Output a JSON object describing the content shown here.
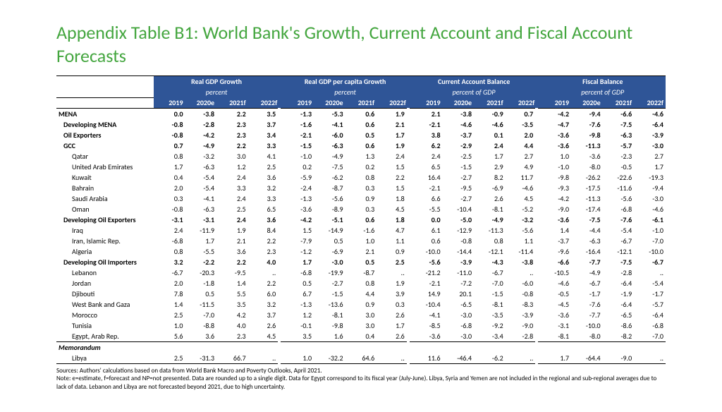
{
  "title": "Appendix Table B1: World Bank's Growth, Current Account and Fiscal Account Forecasts",
  "header": {
    "groups": [
      {
        "title": "Real GDP Growth",
        "sub": "percent"
      },
      {
        "title": "Real GDP per capita Growth",
        "sub": "percent"
      },
      {
        "title": "Current Account Balance",
        "sub": "percent of GDP"
      },
      {
        "title": "Fiscal Balance",
        "sub": "percent of GDP"
      }
    ],
    "years": [
      "2019",
      "2020e",
      "2021f",
      "2022f"
    ]
  },
  "rows": [
    {
      "label": "MENA",
      "cls": "bold",
      "v": [
        "0.0",
        "-3.8",
        "2.2",
        "3.5",
        "-1.3",
        "-5.3",
        "0.6",
        "1.9",
        "2.1",
        "-3.8",
        "-0.9",
        "0.7",
        "-4.2",
        "-9.4",
        "-6.6",
        "-4.6"
      ]
    },
    {
      "label": "Developing MENA",
      "cls": "bold indent1",
      "v": [
        "-0.8",
        "-2.8",
        "2.3",
        "3.7",
        "-1.6",
        "-4.1",
        "0.6",
        "2.1",
        "-2.1",
        "-4.6",
        "-4.6",
        "-3.5",
        "-4.7",
        "-7.6",
        "-7.5",
        "-6.4"
      ]
    },
    {
      "label": "Oil Exporters",
      "cls": "bold indent1",
      "v": [
        "-0.8",
        "-4.2",
        "2.3",
        "3.4",
        "-2.1",
        "-6.0",
        "0.5",
        "1.7",
        "3.8",
        "-3.7",
        "0.1",
        "2.0",
        "-3.6",
        "-9.8",
        "-6.3",
        "-3.9"
      ]
    },
    {
      "label": "GCC",
      "cls": "bold indent1",
      "v": [
        "0.7",
        "-4.9",
        "2.2",
        "3.3",
        "-1.5",
        "-6.3",
        "0.6",
        "1.9",
        "6.2",
        "-2.9",
        "2.4",
        "4.4",
        "-3.6",
        "-11.3",
        "-5.7",
        "-3.0"
      ]
    },
    {
      "label": "Qatar",
      "cls": "indent2",
      "v": [
        "0.8",
        "-3.2",
        "3.0",
        "4.1",
        "-1.0",
        "-4.9",
        "1.3",
        "2.4",
        "2.4",
        "-2.5",
        "1.7",
        "2.7",
        "1.0",
        "-3.6",
        "-2.3",
        "2.7"
      ]
    },
    {
      "label": "United Arab Emirates",
      "cls": "indent2",
      "v": [
        "1.7",
        "-6.3",
        "1.2",
        "2.5",
        "0.2",
        "-7.5",
        "0.2",
        "1.5",
        "6.5",
        "-1.5",
        "2.9",
        "4.9",
        "-1.0",
        "-8.0",
        "-0.5",
        "1.7"
      ]
    },
    {
      "label": "Kuwait",
      "cls": "indent2",
      "v": [
        "0.4",
        "-5.4",
        "2.4",
        "3.6",
        "-5.9",
        "-6.2",
        "0.8",
        "2.2",
        "16.4",
        "-2.7",
        "8.2",
        "11.7",
        "-9.8",
        "-26.2",
        "-22.6",
        "-19.3"
      ]
    },
    {
      "label": "Bahrain",
      "cls": "indent2",
      "v": [
        "2.0",
        "-5.4",
        "3.3",
        "3.2",
        "-2.4",
        "-8.7",
        "0.3",
        "1.5",
        "-2.1",
        "-9.5",
        "-6.9",
        "-4.6",
        "-9.3",
        "-17.5",
        "-11.6",
        "-9.4"
      ]
    },
    {
      "label": "Saudi Arabia",
      "cls": "indent2",
      "v": [
        "0.3",
        "-4.1",
        "2.4",
        "3.3",
        "-1.3",
        "-5.6",
        "0.9",
        "1.8",
        "6.6",
        "-2.7",
        "2.6",
        "4.5",
        "-4.2",
        "-11.3",
        "-5.6",
        "-3.0"
      ]
    },
    {
      "label": "Oman",
      "cls": "indent2",
      "v": [
        "-0.8",
        "-6.3",
        "2.5",
        "6.5",
        "-3.6",
        "-8.9",
        "0.3",
        "4.5",
        "-5.5",
        "-10.4",
        "-8.1",
        "-5.2",
        "-9.0",
        "-17.4",
        "-6.8",
        "-4.6"
      ]
    },
    {
      "label": "Developing Oil Exporters",
      "cls": "bold indent1",
      "v": [
        "-3.1",
        "-3.1",
        "2.4",
        "3.6",
        "-4.2",
        "-5.1",
        "0.6",
        "1.8",
        "0.0",
        "-5.0",
        "-4.9",
        "-3.2",
        "-3.6",
        "-7.5",
        "-7.6",
        "-6.1"
      ]
    },
    {
      "label": "Iraq",
      "cls": "indent2",
      "v": [
        "2.4",
        "-11.9",
        "1.9",
        "8.4",
        "1.5",
        "-14.9",
        "-1.6",
        "4.7",
        "6.1",
        "-12.9",
        "-11.3",
        "-5.6",
        "1.4",
        "-4.4",
        "-5.4",
        "-1.0"
      ]
    },
    {
      "label": "Iran, Islamic Rep.",
      "cls": "indent2",
      "v": [
        "-6.8",
        "1.7",
        "2.1",
        "2.2",
        "-7.9",
        "0.5",
        "1.0",
        "1.1",
        "0.6",
        "-0.8",
        "0.8",
        "1.1",
        "-3.7",
        "-6.3",
        "-6.7",
        "-7.0"
      ]
    },
    {
      "label": "Algeria",
      "cls": "indent2",
      "v": [
        "0.8",
        "-5.5",
        "3.6",
        "2.3",
        "-1.2",
        "-6.9",
        "2.1",
        "0.9",
        "-10.0",
        "-14.4",
        "-12.1",
        "-11.4",
        "-9.6",
        "-16.4",
        "-12.1",
        "-10.0"
      ]
    },
    {
      "label": "Developing Oil Importers",
      "cls": "bold indent1",
      "v": [
        "3.2",
        "-2.2",
        "2.2",
        "4.0",
        "1.7",
        "-3.0",
        "0.5",
        "2.5",
        "-5.6",
        "-3.9",
        "-4.3",
        "-3.8",
        "-6.6",
        "-7.7",
        "-7.5",
        "-6.7"
      ]
    },
    {
      "label": "Lebanon",
      "cls": "indent2",
      "v": [
        "-6.7",
        "-20.3",
        "-9.5",
        "..",
        "-6.8",
        "-19.9",
        "-8.7",
        "..",
        "-21.2",
        "-11.0",
        "-6.7",
        "..",
        "-10.5",
        "-4.9",
        "-2.8",
        ".."
      ]
    },
    {
      "label": "Jordan",
      "cls": "indent2",
      "v": [
        "2.0",
        "-1.8",
        "1.4",
        "2.2",
        "0.5",
        "-2.7",
        "0.8",
        "1.9",
        "-2.1",
        "-7.2",
        "-7.0",
        "-6.0",
        "-4.6",
        "-6.7",
        "-6.4",
        "-5.4"
      ]
    },
    {
      "label": "Djibouti",
      "cls": "indent2",
      "v": [
        "7.8",
        "0.5",
        "5.5",
        "6.0",
        "6.7",
        "-1.5",
        "4.4",
        "3.9",
        "14.9",
        "20.1",
        "-1.5",
        "-0.8",
        "-0.5",
        "-1.7",
        "-1.9",
        "-1.7"
      ]
    },
    {
      "label": "West Bank and Gaza",
      "cls": "indent2",
      "v": [
        "1.4",
        "-11.5",
        "3.5",
        "3.2",
        "-1.3",
        "-13.6",
        "0.9",
        "0.3",
        "-10.4",
        "-6.5",
        "-8.1",
        "-8.3",
        "-4.5",
        "-7.6",
        "-6.4",
        "-5.7"
      ]
    },
    {
      "label": "Morocco",
      "cls": "indent2",
      "v": [
        "2.5",
        "-7.0",
        "4.2",
        "3.7",
        "1.2",
        "-8.1",
        "3.0",
        "2.6",
        "-4.1",
        "-3.0",
        "-3.5",
        "-3.9",
        "-3.6",
        "-7.7",
        "-6.5",
        "-6.4"
      ]
    },
    {
      "label": "Tunisia",
      "cls": "indent2",
      "v": [
        "1.0",
        "-8.8",
        "4.0",
        "2.6",
        "-0.1",
        "-9.8",
        "3.0",
        "1.7",
        "-8.5",
        "-6.8",
        "-9.2",
        "-9.0",
        "-3.1",
        "-10.0",
        "-8.6",
        "-6.8"
      ]
    },
    {
      "label": "Egypt, Arab Rep.",
      "cls": "indent2",
      "v": [
        "5.6",
        "3.6",
        "2.3",
        "4.5",
        "3.5",
        "1.6",
        "0.4",
        "2.6",
        "-3.6",
        "-3.0",
        "-3.4",
        "-2.8",
        "-8.1",
        "-8.0",
        "-8.2",
        "-7.0"
      ]
    }
  ],
  "memo": {
    "label": "Memorandum"
  },
  "memo_row": {
    "label": "Libya",
    "cls": "indent2",
    "v": [
      "2.5",
      "-31.3",
      "66.7",
      "..",
      "1.0",
      "-32.2",
      "64.6",
      "..",
      "11.6",
      "-46.4",
      "-6.2",
      "..",
      "1.7",
      "-64.4",
      "-9.0",
      ".."
    ]
  },
  "notes": {
    "src": "Sources: Authors' calculations based on data from World Bank Macro and Poverty Outlooks, April 2021.",
    "note": "Note: e=estimate, f=forecast and NP=not presented. Data are rounded up to a single digit. Data for Egypt correspond to its fiscal year (July-June). Libya, Syria and Yemen are not included in the regional and sub-regional averages due to lack of data. Lebanon and Libya are not forecasted beyond 2021, due to high uncertainty."
  },
  "style": {
    "title_color": "#44a63f",
    "header_bg": "#2f5597",
    "header_fg": "#ffffff",
    "border_color": "#000000",
    "font_size_table": 10,
    "font_size_title": 26,
    "font_size_notes": 9
  }
}
